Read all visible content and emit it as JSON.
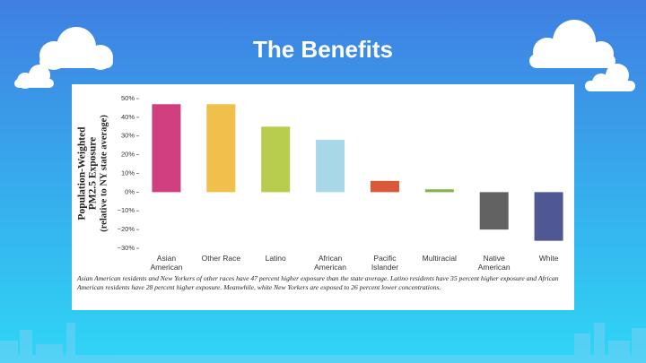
{
  "slide": {
    "title": "The Benefits"
  },
  "chart_data": {
    "type": "bar",
    "y_label": [
      "Population-Weighted",
      "PM2.5 Exposure",
      "(relative to NY state average)"
    ],
    "categories": [
      "Asian American",
      "Other Race",
      "Latino",
      "African American",
      "Pacific Islander",
      "Multiracial",
      "Native American",
      "White"
    ],
    "values": [
      47,
      47,
      35,
      28,
      6,
      1.5,
      -20,
      -26
    ],
    "colors": [
      "#d03f7f",
      "#f0bf4c",
      "#b8cc4e",
      "#a8d8e8",
      "#d9593a",
      "#82b24a",
      "#626262",
      "#4f5892"
    ],
    "ylim": [
      -30,
      50
    ],
    "yticks": [
      {
        "value": 50,
        "label": "50%"
      },
      {
        "value": 40,
        "label": "40%"
      },
      {
        "value": 30,
        "label": "30%"
      },
      {
        "value": 20,
        "label": "20%"
      },
      {
        "value": 10,
        "label": "10%"
      },
      {
        "value": 0,
        "label": "0%"
      },
      {
        "value": -10,
        "label": "−10%"
      },
      {
        "value": -20,
        "label": "−20%"
      },
      {
        "value": -30,
        "label": "−30%"
      }
    ],
    "caption": "Asian American residents and New Yorkers of other races have 47 percent higher exposure than the state average. Latino residents have 35 percent higher exposure and African American residents have 28 percent higher exposure. Meanwhile, white New Yorkers are exposed to 26 percent lower concentrations."
  }
}
